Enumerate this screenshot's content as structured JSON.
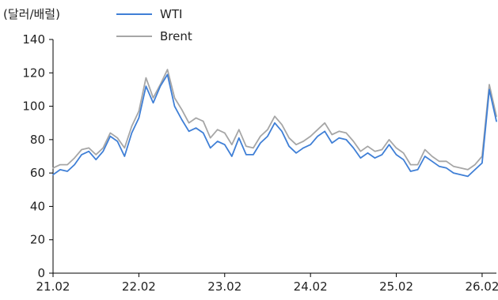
{
  "chart_data": {
    "type": "line",
    "unit_label": "(달러/배럴)",
    "ylim": [
      0,
      140
    ],
    "y_ticks": [
      "0",
      "20",
      "40",
      "60",
      "80",
      "100",
      "120",
      "140"
    ],
    "x_ticks": [
      "21.02",
      "22.02",
      "23.02",
      "24.02",
      "25.02",
      "26.02"
    ],
    "xlim": [
      "2021-02",
      "2026-04"
    ],
    "grid": false,
    "legend_position": "top",
    "series": [
      {
        "name": "WTI",
        "color": "#3f7fd6",
        "points": [
          [
            "2021-02",
            59
          ],
          [
            "2021-03",
            62
          ],
          [
            "2021-04",
            61
          ],
          [
            "2021-05",
            65
          ],
          [
            "2021-06",
            71
          ],
          [
            "2021-07",
            73
          ],
          [
            "2021-08",
            68
          ],
          [
            "2021-09",
            73
          ],
          [
            "2021-10",
            82
          ],
          [
            "2021-11",
            79
          ],
          [
            "2021-12",
            70
          ],
          [
            "2022-01",
            84
          ],
          [
            "2022-02",
            93
          ],
          [
            "2022-03",
            112
          ],
          [
            "2022-04",
            102
          ],
          [
            "2022-05",
            112
          ],
          [
            "2022-06",
            119
          ],
          [
            "2022-07",
            100
          ],
          [
            "2022-08",
            92
          ],
          [
            "2022-09",
            85
          ],
          [
            "2022-10",
            87
          ],
          [
            "2022-11",
            84
          ],
          [
            "2022-12",
            75
          ],
          [
            "2023-01",
            79
          ],
          [
            "2023-02",
            77
          ],
          [
            "2023-03",
            70
          ],
          [
            "2023-04",
            81
          ],
          [
            "2023-05",
            71
          ],
          [
            "2023-06",
            71
          ],
          [
            "2023-07",
            78
          ],
          [
            "2023-08",
            82
          ],
          [
            "2023-09",
            90
          ],
          [
            "2023-10",
            85
          ],
          [
            "2023-11",
            76
          ],
          [
            "2023-12",
            72
          ],
          [
            "2024-01",
            75
          ],
          [
            "2024-02",
            77
          ],
          [
            "2024-03",
            82
          ],
          [
            "2024-04",
            85
          ],
          [
            "2024-05",
            78
          ],
          [
            "2024-06",
            81
          ],
          [
            "2024-07",
            80
          ],
          [
            "2024-08",
            75
          ],
          [
            "2024-09",
            69
          ],
          [
            "2024-10",
            72
          ],
          [
            "2024-11",
            69
          ],
          [
            "2024-12",
            71
          ],
          [
            "2025-01",
            77
          ],
          [
            "2025-02",
            71
          ],
          [
            "2025-03",
            68
          ],
          [
            "2025-04",
            61
          ],
          [
            "2025-05",
            62
          ],
          [
            "2025-06",
            70
          ],
          [
            "2025-07",
            67
          ],
          [
            "2025-08",
            64
          ],
          [
            "2025-09",
            63
          ],
          [
            "2025-10",
            60
          ],
          [
            "2025-11",
            59
          ],
          [
            "2025-12",
            58
          ],
          [
            "2026-01",
            62
          ],
          [
            "2026-02",
            66
          ],
          [
            "2026-03",
            110
          ],
          [
            "2026-04",
            91
          ]
        ]
      },
      {
        "name": "Brent",
        "color": "#a6a6a6",
        "points": [
          [
            "2021-02",
            63
          ],
          [
            "2021-03",
            65
          ],
          [
            "2021-04",
            65
          ],
          [
            "2021-05",
            69
          ],
          [
            "2021-06",
            74
          ],
          [
            "2021-07",
            75
          ],
          [
            "2021-08",
            71
          ],
          [
            "2021-09",
            75
          ],
          [
            "2021-10",
            84
          ],
          [
            "2021-11",
            81
          ],
          [
            "2021-12",
            75
          ],
          [
            "2022-01",
            88
          ],
          [
            "2022-02",
            97
          ],
          [
            "2022-03",
            117
          ],
          [
            "2022-04",
            105
          ],
          [
            "2022-05",
            113
          ],
          [
            "2022-06",
            122
          ],
          [
            "2022-07",
            105
          ],
          [
            "2022-08",
            98
          ],
          [
            "2022-09",
            90
          ],
          [
            "2022-10",
            93
          ],
          [
            "2022-11",
            91
          ],
          [
            "2022-12",
            81
          ],
          [
            "2023-01",
            86
          ],
          [
            "2023-02",
            84
          ],
          [
            "2023-03",
            77
          ],
          [
            "2023-04",
            86
          ],
          [
            "2023-05",
            76
          ],
          [
            "2023-06",
            75
          ],
          [
            "2023-07",
            82
          ],
          [
            "2023-08",
            86
          ],
          [
            "2023-09",
            94
          ],
          [
            "2023-10",
            89
          ],
          [
            "2023-11",
            81
          ],
          [
            "2023-12",
            77
          ],
          [
            "2024-01",
            79
          ],
          [
            "2024-02",
            82
          ],
          [
            "2024-03",
            86
          ],
          [
            "2024-04",
            90
          ],
          [
            "2024-05",
            83
          ],
          [
            "2024-06",
            85
          ],
          [
            "2024-07",
            84
          ],
          [
            "2024-08",
            79
          ],
          [
            "2024-09",
            73
          ],
          [
            "2024-10",
            76
          ],
          [
            "2024-11",
            73
          ],
          [
            "2024-12",
            74
          ],
          [
            "2025-01",
            80
          ],
          [
            "2025-02",
            75
          ],
          [
            "2025-03",
            72
          ],
          [
            "2025-04",
            65
          ],
          [
            "2025-05",
            65
          ],
          [
            "2025-06",
            74
          ],
          [
            "2025-07",
            70
          ],
          [
            "2025-08",
            67
          ],
          [
            "2025-09",
            67
          ],
          [
            "2025-10",
            64
          ],
          [
            "2025-11",
            63
          ],
          [
            "2025-12",
            62
          ],
          [
            "2026-01",
            65
          ],
          [
            "2026-02",
            70
          ],
          [
            "2026-03",
            113
          ],
          [
            "2026-04",
            94
          ]
        ]
      }
    ]
  }
}
